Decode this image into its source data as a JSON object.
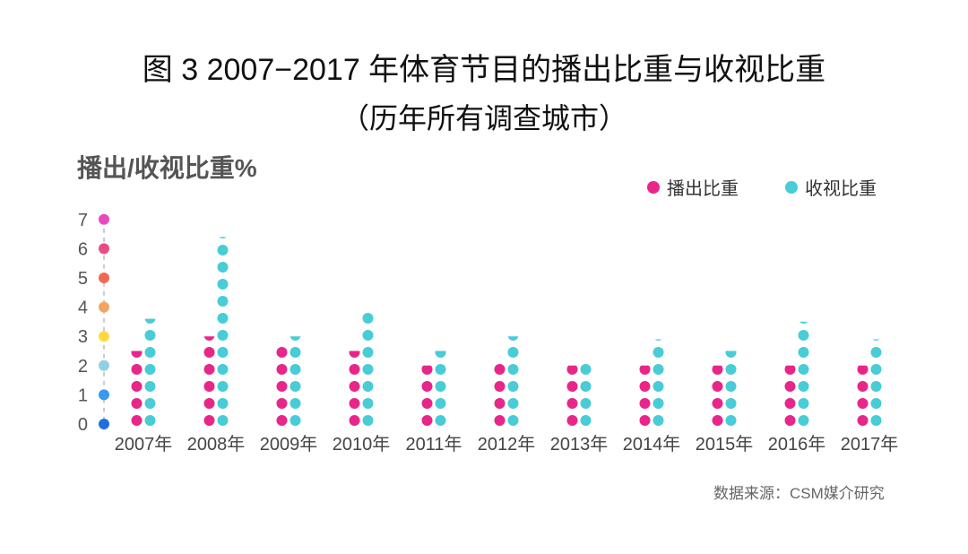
{
  "title_line1": "图 3  2007−2017 年体育节目的播出比重与收视比重",
  "title_line2": "（历年所有调查城市）",
  "y_axis_label": "播出/收视比重%",
  "source": "数据来源：CSM媒介研究",
  "chart_data": {
    "type": "bar",
    "style": "dot-column",
    "categories": [
      "2007年",
      "2008年",
      "2009年",
      "2010年",
      "2011年",
      "2012年",
      "2013年",
      "2014年",
      "2015年",
      "2016年",
      "2017年"
    ],
    "ylim": [
      0,
      7
    ],
    "yticks": [
      0,
      1,
      2,
      3,
      4,
      5,
      6,
      7
    ],
    "ytick_colors": [
      "#1f6fe0",
      "#3a98ee",
      "#8fd0e4",
      "#ffd93e",
      "#f4a460",
      "#ef6a55",
      "#ec4b87",
      "#ea48c0"
    ],
    "grid": false,
    "legend": "top-right",
    "series": [
      {
        "name": "播出比重",
        "color": "#e8268a",
        "values": [
          2.5,
          3.0,
          2.8,
          2.5,
          2.0,
          2.3,
          2.0,
          2.0,
          2.0,
          2.0,
          2.0
        ]
      },
      {
        "name": "收视比重",
        "color": "#48ccd6",
        "values": [
          3.6,
          6.4,
          3.0,
          4.0,
          2.5,
          3.0,
          2.3,
          2.9,
          2.5,
          3.5,
          2.9
        ]
      }
    ]
  }
}
